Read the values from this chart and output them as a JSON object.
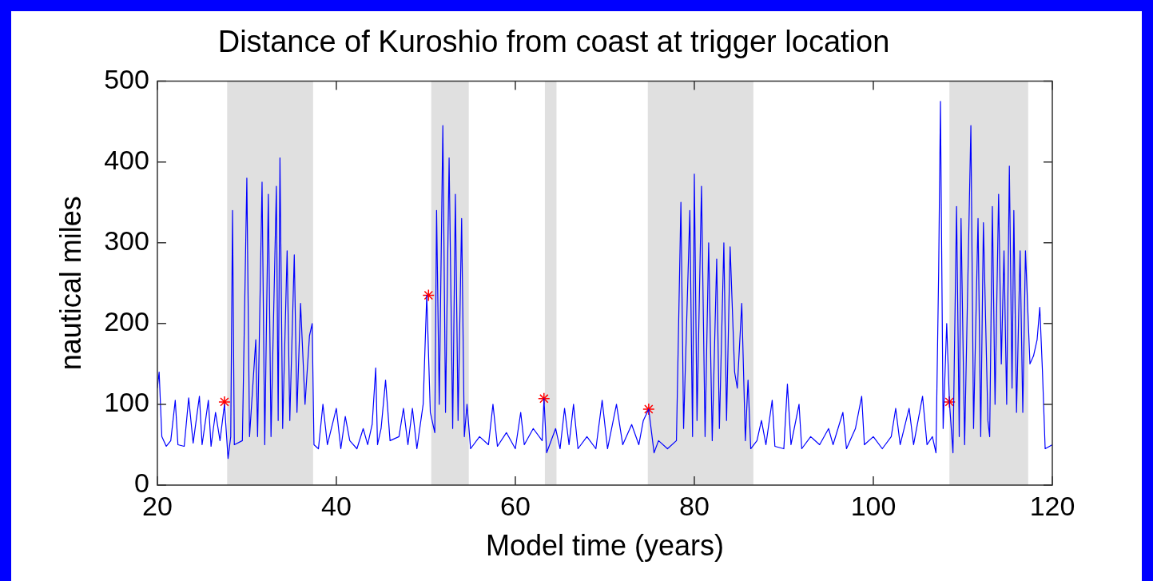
{
  "chart_data": {
    "type": "line",
    "title": "Distance of Kuroshio from coast at trigger location",
    "xlabel": "Model time (years)",
    "ylabel": "nautical miles",
    "xlim": [
      20,
      120
    ],
    "xticks": [
      20,
      40,
      60,
      80,
      100,
      120
    ],
    "ylim": [
      0,
      500
    ],
    "yticks": [
      0,
      100,
      200,
      300,
      400,
      500
    ],
    "grid": false,
    "legend": false,
    "bands": [
      {
        "axis": "x",
        "from": 27.8,
        "to": 37.4,
        "color": "#e0e0e0"
      },
      {
        "axis": "x",
        "from": 50.6,
        "to": 54.8,
        "color": "#e0e0e0"
      },
      {
        "axis": "x",
        "from": 63.3,
        "to": 64.6,
        "color": "#e0e0e0"
      },
      {
        "axis": "x",
        "from": 74.8,
        "to": 86.6,
        "color": "#e0e0e0"
      },
      {
        "axis": "x",
        "from": 108.5,
        "to": 117.3,
        "color": "#e0e0e0"
      }
    ],
    "series": [
      {
        "color": "#0000ff",
        "x": [
          20,
          20.2,
          20.5,
          21,
          21.5,
          22,
          22.3,
          23,
          23.5,
          24,
          24.7,
          25,
          25.7,
          26,
          26.5,
          27,
          27.5,
          27.9,
          28.2,
          28.4,
          28.6,
          29.5,
          30,
          30.3,
          31,
          31.2,
          31.7,
          32,
          32.4,
          32.7,
          33.3,
          33.5,
          33.7,
          34,
          34.5,
          34.8,
          35.3,
          35.6,
          36,
          36.5,
          37,
          37.3,
          37.5,
          38,
          38.5,
          39,
          40,
          40.5,
          41,
          41.5,
          42.3,
          43,
          43.5,
          44,
          44.4,
          44.6,
          45,
          45.5,
          46,
          47,
          47.5,
          48,
          48.5,
          49,
          49.7,
          50.1,
          50.5,
          51,
          51.2,
          51.5,
          51.9,
          52.2,
          52.6,
          53,
          53.3,
          53.6,
          54,
          54.3,
          54.6,
          55,
          56,
          57,
          57.5,
          58,
          59,
          60,
          60.6,
          61,
          62,
          63,
          63.2,
          63.5,
          64.5,
          65,
          65.5,
          66,
          66.5,
          67,
          68,
          69,
          69.7,
          70.3,
          71.3,
          72,
          73,
          73.8,
          74.3,
          74.9,
          75.5,
          76,
          77,
          78,
          78.5,
          78.8,
          79.5,
          79.8,
          80,
          80.3,
          80.8,
          81.2,
          81.6,
          82,
          82.5,
          82.8,
          83.3,
          83.6,
          84,
          84.5,
          84.8,
          85.3,
          85.7,
          86,
          86.3,
          87,
          87.5,
          88,
          88.7,
          89,
          90,
          90.4,
          90.8,
          91.7,
          92,
          93,
          94,
          95,
          95.5,
          96.6,
          97,
          98,
          98.7,
          99,
          100,
          101,
          102,
          102.5,
          103,
          104,
          104.5,
          105.5,
          106,
          106.6,
          107,
          107.3,
          107.5,
          107.8,
          108.2,
          108.5,
          108.9,
          109.3,
          109.6,
          109.8,
          110.2,
          110.9,
          111.2,
          111.7,
          112,
          112.3,
          112.8,
          113,
          113.3,
          113.6,
          114,
          114.3,
          114.6,
          114.9,
          115.2,
          115.5,
          115.7,
          116,
          116.4,
          116.7,
          117,
          117.5,
          117.9,
          118.3,
          118.6,
          118.9,
          119.2,
          120
        ],
        "values": [
          120,
          140,
          60,
          48,
          55,
          105,
          50,
          48,
          108,
          52,
          110,
          50,
          105,
          48,
          90,
          55,
          100,
          33,
          60,
          340,
          50,
          55,
          380,
          60,
          180,
          60,
          375,
          50,
          360,
          60,
          370,
          80,
          405,
          70,
          290,
          80,
          285,
          90,
          225,
          100,
          185,
          200,
          50,
          45,
          100,
          50,
          95,
          45,
          85,
          55,
          45,
          70,
          50,
          75,
          145,
          50,
          70,
          130,
          55,
          60,
          95,
          50,
          95,
          45,
          100,
          235,
          90,
          65,
          340,
          100,
          445,
          90,
          405,
          70,
          360,
          80,
          330,
          60,
          100,
          45,
          60,
          50,
          100,
          48,
          65,
          45,
          90,
          50,
          70,
          55,
          107,
          40,
          70,
          45,
          95,
          50,
          100,
          45,
          60,
          45,
          105,
          45,
          100,
          50,
          75,
          50,
          80,
          94,
          40,
          55,
          45,
          55,
          350,
          70,
          340,
          60,
          385,
          80,
          370,
          60,
          300,
          55,
          280,
          70,
          300,
          80,
          295,
          140,
          120,
          225,
          55,
          130,
          45,
          55,
          80,
          50,
          105,
          48,
          45,
          125,
          50,
          100,
          45,
          60,
          50,
          70,
          50,
          90,
          45,
          70,
          110,
          50,
          60,
          45,
          60,
          95,
          50,
          95,
          50,
          110,
          50,
          60,
          40,
          265,
          475,
          70,
          200,
          103,
          40,
          345,
          60,
          330,
          50,
          445,
          70,
          330,
          60,
          325,
          80,
          60,
          345,
          100,
          360,
          150,
          290,
          100,
          395,
          120,
          340,
          90,
          290,
          90,
          290,
          150,
          160,
          180,
          220,
          140,
          45,
          50
        ]
      },
      {
        "type": "scatter",
        "color": "#ff0000",
        "marker": "cross",
        "x": [
          27.5,
          50.3,
          63.2,
          74.9,
          108.5
        ],
        "values": [
          103,
          235,
          107,
          94,
          103
        ]
      }
    ]
  }
}
